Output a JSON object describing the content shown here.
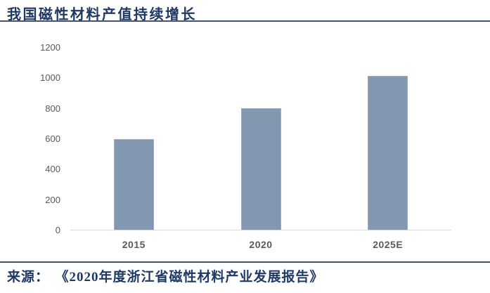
{
  "header": {
    "title": "我国磁性材料产值持续增长"
  },
  "footer": {
    "source_label": "来源：",
    "source_title": "《2020年度浙江省磁性材料产业发展报告》"
  },
  "colors": {
    "title_text": "#1F3864",
    "rule": "#44546A",
    "bar_fill": "#8497B0",
    "bar_border": "#9DACC2",
    "axis_line": "#D9D9D9",
    "tick_text": "#595959"
  },
  "chart_data": {
    "type": "bar",
    "title": "我国磁性材料产值持续增长",
    "categories": [
      "2015",
      "2020",
      "2025E"
    ],
    "values": [
      600,
      800,
      1015
    ],
    "xlabel": "",
    "ylabel": "",
    "ylim": [
      0,
      1200
    ],
    "yticks": [
      0,
      200,
      400,
      600,
      800,
      1000,
      1200
    ],
    "grid": false,
    "legend": false
  }
}
